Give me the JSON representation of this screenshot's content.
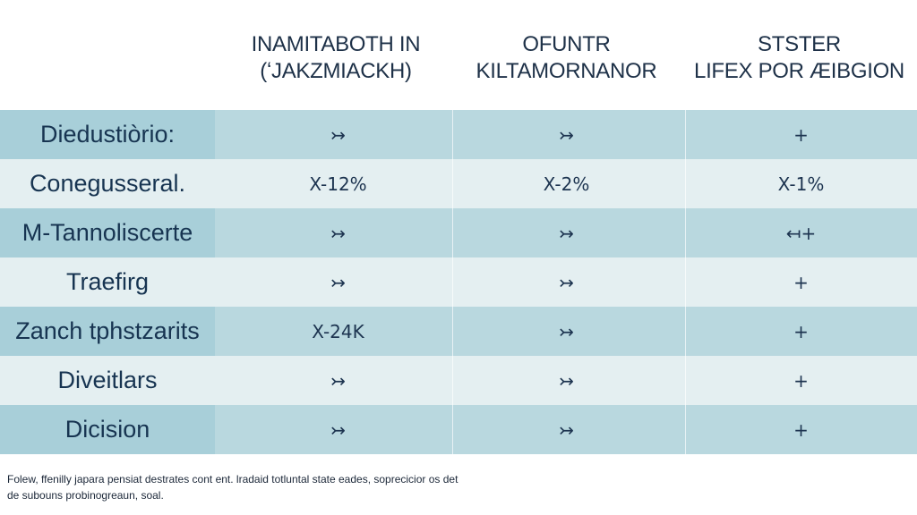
{
  "table": {
    "headers": [
      [
        "INAMITABOTH IN",
        "(ʻJAKZMIACKH)"
      ],
      [
        "OFUNTR",
        "KILTAMORNANOR"
      ],
      [
        "STSTER",
        "LIFEX POR ÆIBGION"
      ]
    ],
    "rows": [
      {
        "label": "Diedustiòrio:",
        "values": [
          "↣",
          "↣",
          "+"
        ]
      },
      {
        "label": "Conegusseral.",
        "values": [
          "X-12%",
          "X-2%",
          "X-1%"
        ]
      },
      {
        "label": "M-Tannoliscerte",
        "values": [
          "↣",
          "↣",
          "↤+"
        ]
      },
      {
        "label": "Traefirg",
        "values": [
          "↣",
          "↣",
          "+"
        ]
      },
      {
        "label": "Zanch tphstzarits",
        "values": [
          "X-24K",
          "↣",
          "+"
        ]
      },
      {
        "label": "Diveitlars",
        "values": [
          "↣",
          "↣",
          "+"
        ]
      },
      {
        "label": "Dicision",
        "values": [
          "↣",
          "↣",
          "+"
        ]
      }
    ]
  },
  "footer": {
    "line_1": "Folew, ffenilly japara pensiat destrates cont ent. lradaid totluntal state eades, soprecicior os det",
    "line_2": "de subouns probinogreaun, soal."
  },
  "colors": {
    "odd_row": "#b9d8df",
    "even_row": "#e4eff1",
    "label_highlight": "#a8cfd9",
    "text": "#1d3450"
  }
}
